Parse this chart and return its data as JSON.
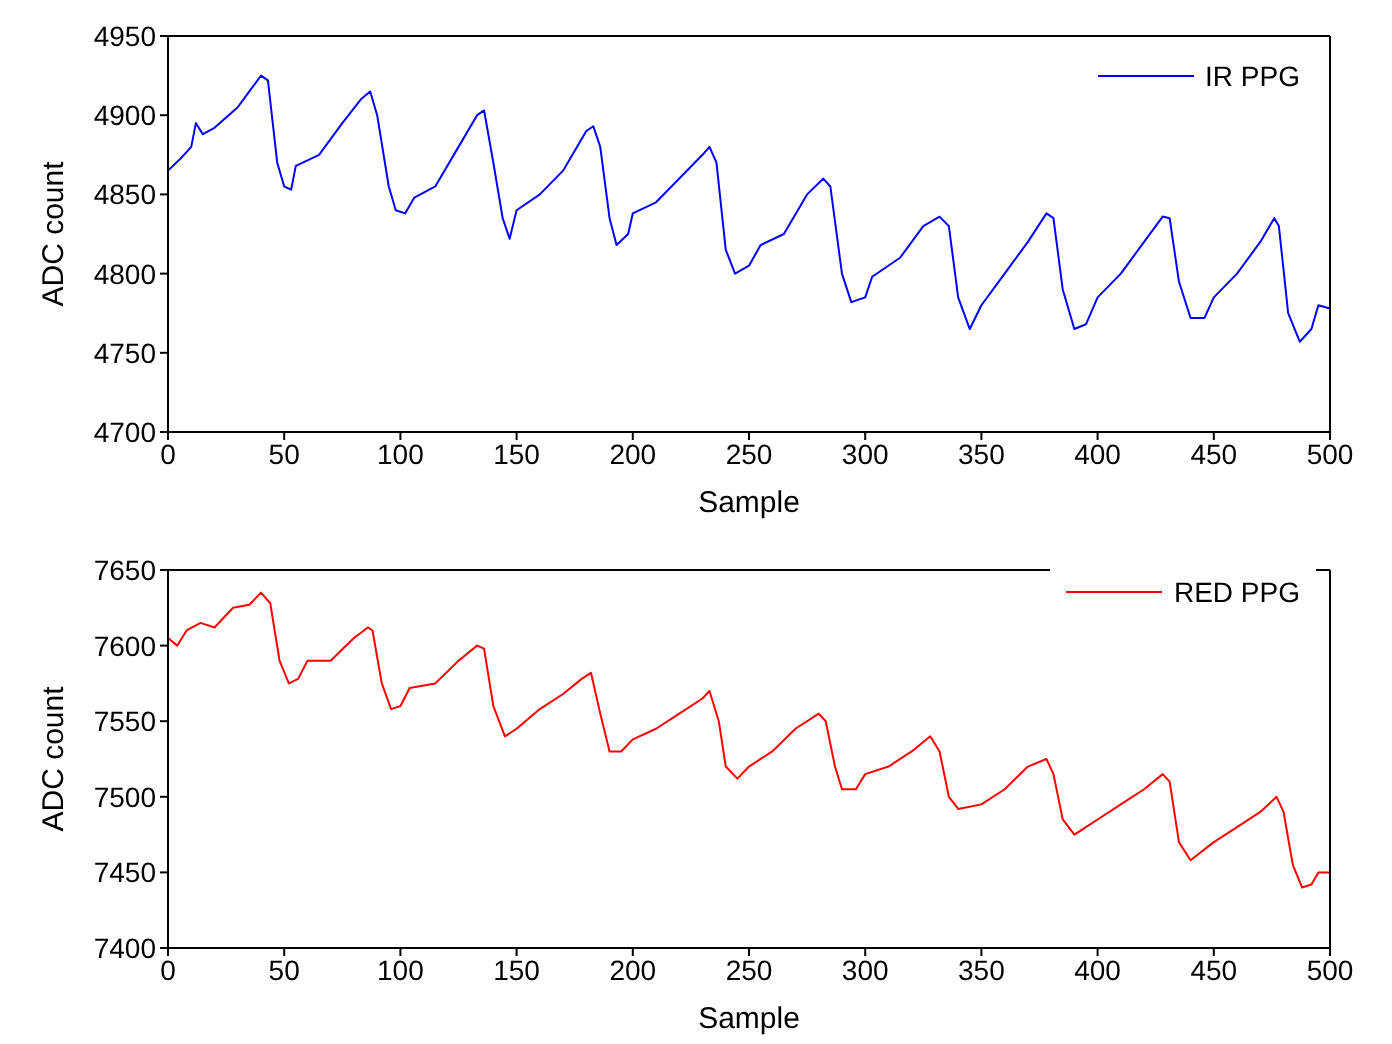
{
  "chart_data": [
    {
      "type": "line",
      "xlabel": "Sample",
      "ylabel": "ADC count",
      "xlim": [
        0,
        500
      ],
      "xticks": [
        0,
        50,
        100,
        150,
        200,
        250,
        300,
        350,
        400,
        450,
        500
      ],
      "ylim": [
        4700,
        4950
      ],
      "yticks": [
        4700,
        4750,
        4800,
        4850,
        4900,
        4950
      ],
      "legend": "top right",
      "marker": "none",
      "line_style": "solid",
      "series": [
        {
          "name": "IR PPG",
          "color": "#0000ff",
          "x": [
            0,
            5,
            10,
            12,
            15,
            20,
            30,
            35,
            40,
            43,
            47,
            50,
            53,
            55,
            65,
            75,
            83,
            87,
            90,
            95,
            98,
            102,
            106,
            115,
            125,
            133,
            136,
            140,
            144,
            147,
            150,
            160,
            170,
            180,
            183,
            186,
            190,
            193,
            198,
            200,
            210,
            220,
            230,
            233,
            236,
            240,
            244,
            250,
            255,
            265,
            275,
            282,
            285,
            290,
            294,
            300,
            303,
            315,
            325,
            332,
            336,
            340,
            345,
            350,
            360,
            370,
            378,
            381,
            385,
            390,
            395,
            400,
            410,
            420,
            428,
            431,
            435,
            440,
            446,
            450,
            460,
            470,
            476,
            478,
            482,
            487,
            492,
            495,
            500
          ],
          "values": [
            4865,
            4872,
            4880,
            4895,
            4888,
            4892,
            4905,
            4915,
            4925,
            4922,
            4870,
            4855,
            4853,
            4868,
            4875,
            4895,
            4910,
            4915,
            4900,
            4855,
            4840,
            4838,
            4848,
            4855,
            4880,
            4900,
            4903,
            4870,
            4835,
            4822,
            4840,
            4850,
            4865,
            4890,
            4893,
            4880,
            4835,
            4818,
            4825,
            4838,
            4845,
            4860,
            4875,
            4880,
            4870,
            4815,
            4800,
            4805,
            4818,
            4825,
            4850,
            4860,
            4855,
            4800,
            4782,
            4785,
            4798,
            4810,
            4830,
            4836,
            4830,
            4785,
            4765,
            4780,
            4800,
            4820,
            4838,
            4835,
            4790,
            4765,
            4768,
            4785,
            4800,
            4820,
            4836,
            4835,
            4795,
            4772,
            4772,
            4785,
            4800,
            4820,
            4835,
            4830,
            4775,
            4757,
            4765,
            4780,
            4778
          ]
        }
      ]
    },
    {
      "type": "line",
      "xlabel": "Sample",
      "ylabel": "ADC count",
      "xlim": [
        0,
        500
      ],
      "xticks": [
        0,
        50,
        100,
        150,
        200,
        250,
        300,
        350,
        400,
        450,
        500
      ],
      "ylim": [
        7400,
        7650
      ],
      "yticks": [
        7400,
        7450,
        7500,
        7550,
        7600,
        7650
      ],
      "legend": "top right",
      "marker": "none",
      "line_style": "solid",
      "series": [
        {
          "name": "RED PPG",
          "color": "#ff0000",
          "x": [
            0,
            4,
            8,
            14,
            20,
            28,
            35,
            40,
            44,
            48,
            52,
            56,
            60,
            70,
            80,
            86,
            88,
            92,
            96,
            100,
            104,
            115,
            125,
            133,
            136,
            140,
            145,
            150,
            160,
            170,
            178,
            182,
            186,
            190,
            195,
            200,
            210,
            220,
            230,
            233,
            237,
            240,
            245,
            250,
            260,
            270,
            280,
            283,
            287,
            290,
            296,
            300,
            310,
            320,
            328,
            332,
            336,
            340,
            350,
            360,
            370,
            378,
            381,
            385,
            390,
            395,
            400,
            410,
            420,
            428,
            431,
            435,
            440,
            450,
            460,
            470,
            477,
            480,
            484,
            488,
            492,
            495,
            500
          ],
          "values": [
            7605,
            7600,
            7610,
            7615,
            7612,
            7625,
            7627,
            7635,
            7628,
            7590,
            7575,
            7578,
            7590,
            7590,
            7605,
            7612,
            7610,
            7575,
            7558,
            7560,
            7572,
            7575,
            7590,
            7600,
            7598,
            7560,
            7540,
            7545,
            7558,
            7568,
            7578,
            7582,
            7555,
            7530,
            7530,
            7538,
            7545,
            7555,
            7565,
            7570,
            7550,
            7520,
            7512,
            7520,
            7530,
            7545,
            7555,
            7550,
            7520,
            7505,
            7505,
            7515,
            7520,
            7530,
            7540,
            7530,
            7500,
            7492,
            7495,
            7505,
            7520,
            7525,
            7515,
            7485,
            7475,
            7480,
            7485,
            7495,
            7505,
            7515,
            7510,
            7470,
            7458,
            7470,
            7480,
            7490,
            7500,
            7490,
            7455,
            7440,
            7442,
            7450,
            7450
          ]
        }
      ]
    }
  ]
}
